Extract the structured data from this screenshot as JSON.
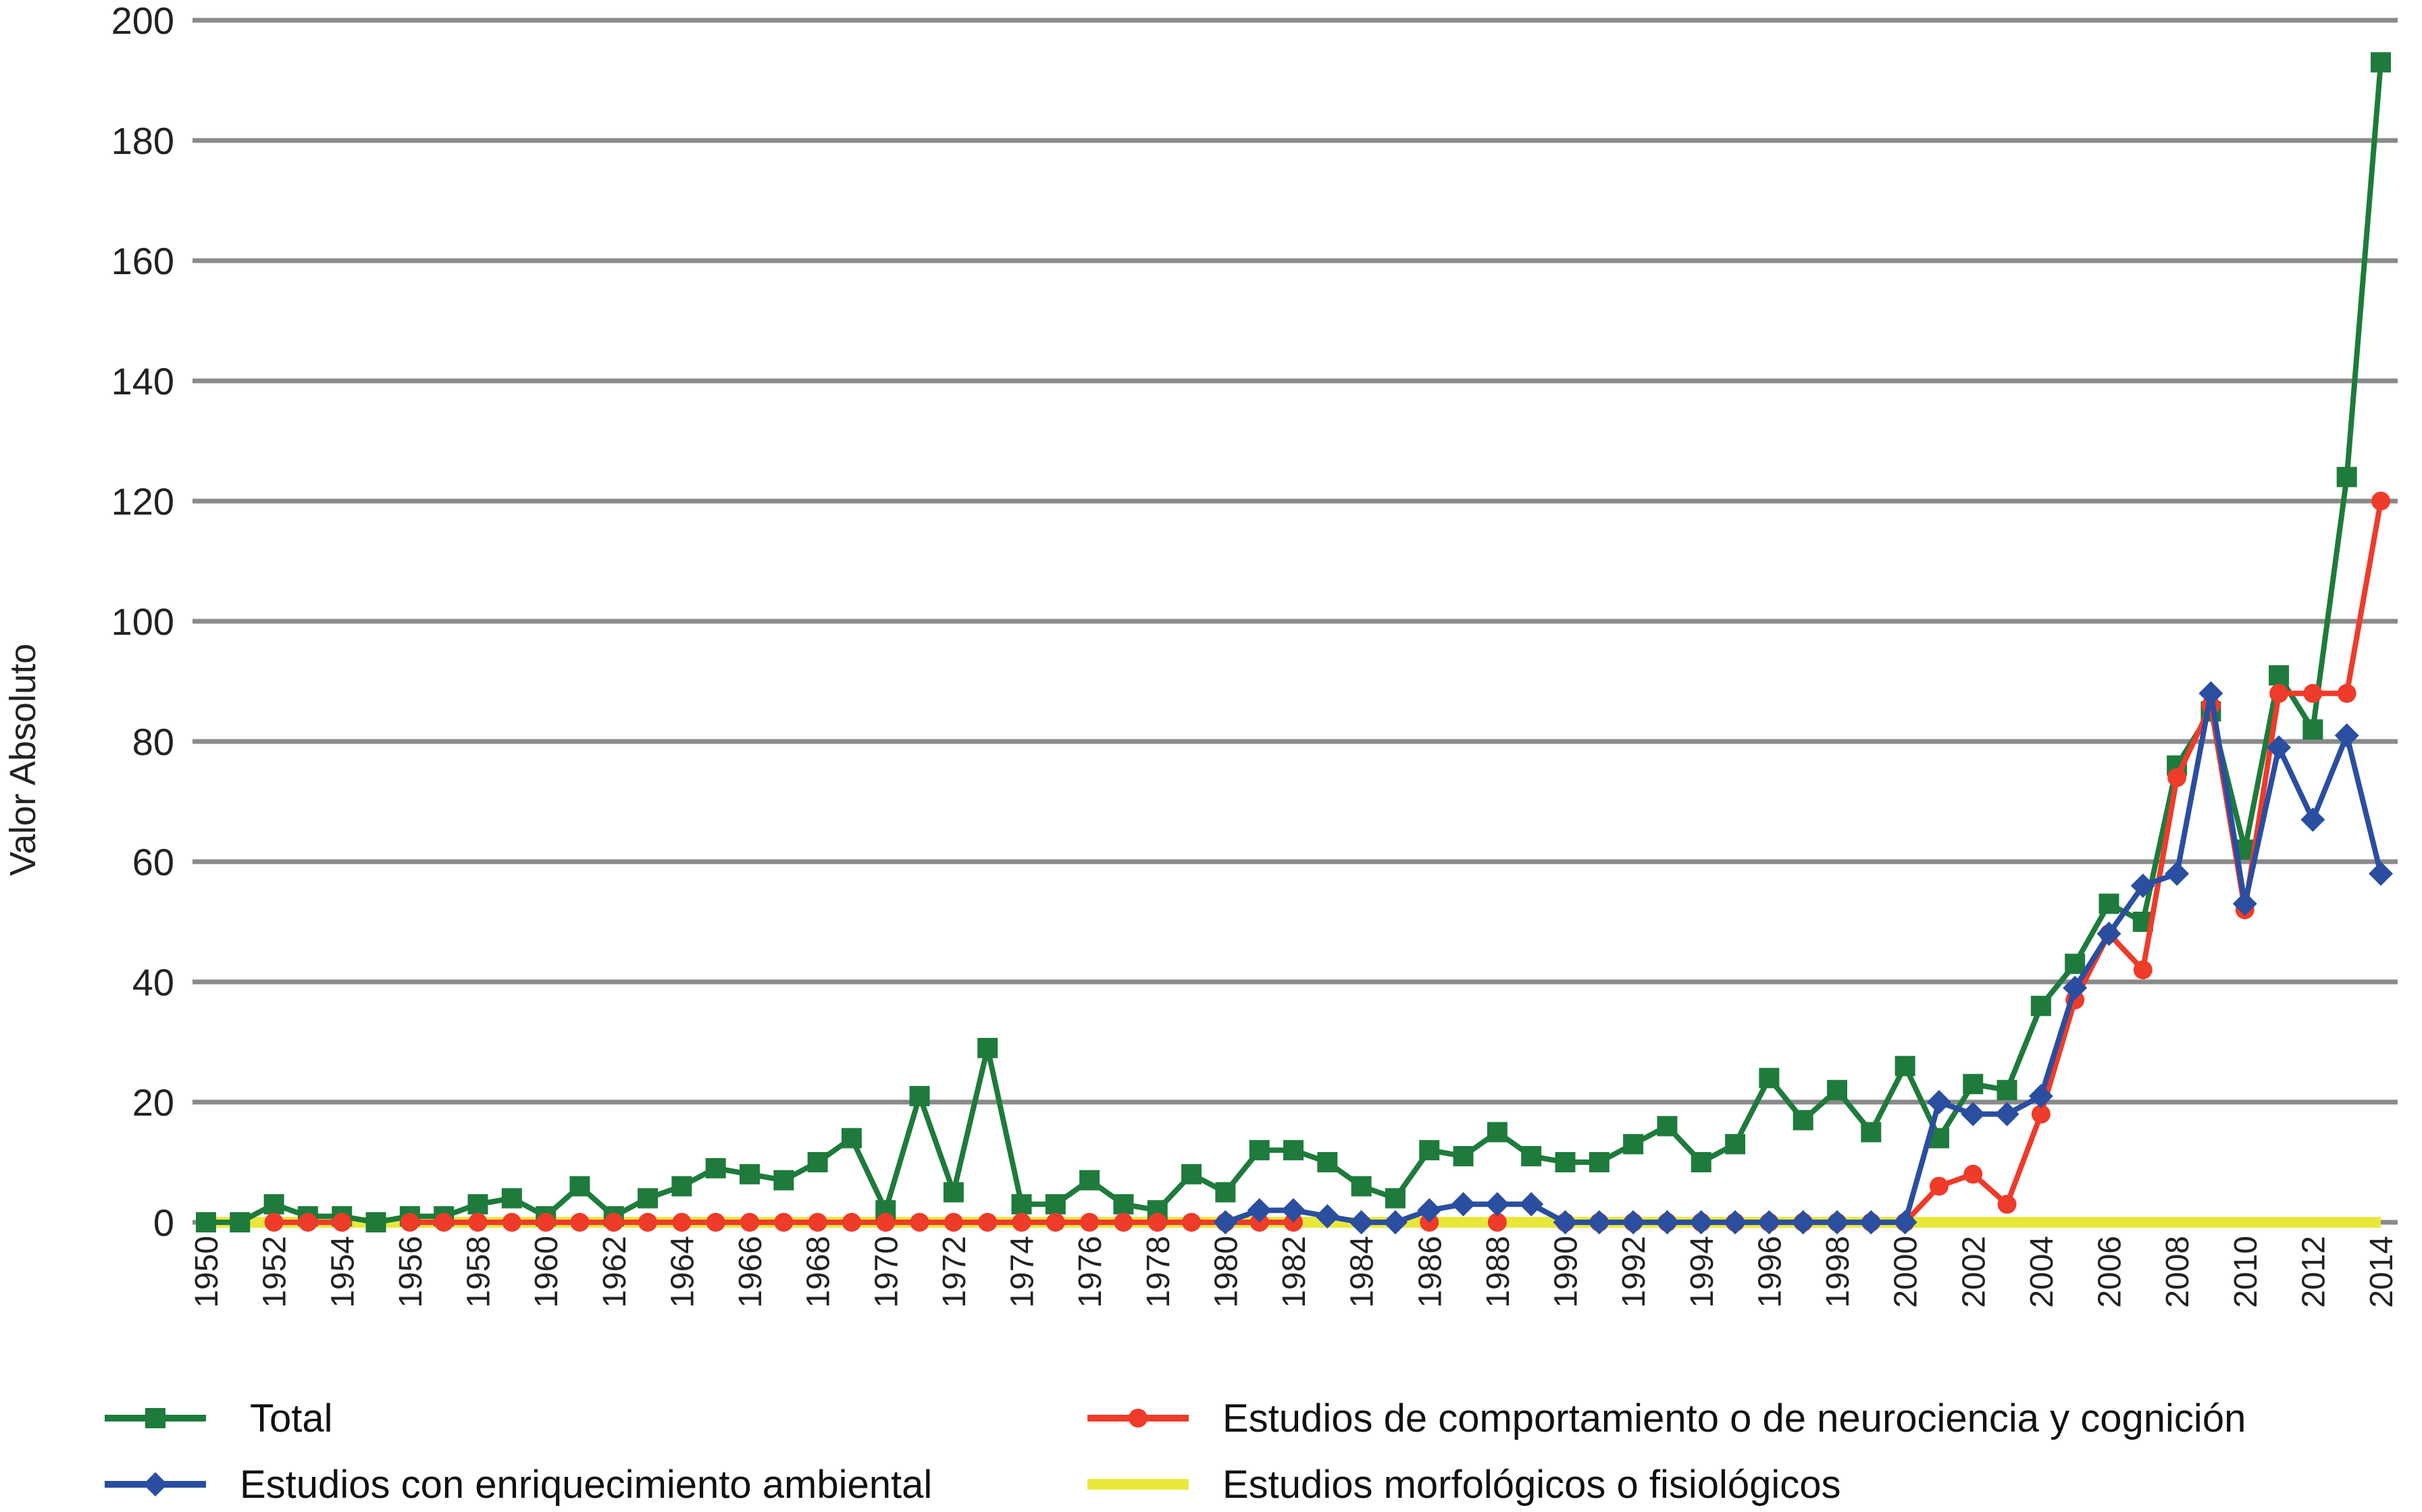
{
  "chart_data": {
    "type": "line",
    "title": "",
    "xlabel": "",
    "ylabel": "Valor Absoluto",
    "ylim": [
      0,
      200
    ],
    "yticks": [
      0,
      20,
      40,
      60,
      80,
      100,
      120,
      140,
      160,
      180,
      200
    ],
    "grid": "horizontal",
    "legend_position": "bottom",
    "x_start": 1950,
    "x_end": 2014,
    "xtick_labels": [
      "1950",
      "1952",
      "1954",
      "1956",
      "1958",
      "1960",
      "1962",
      "1964",
      "1966",
      "1968",
      "1970",
      "1972",
      "1974",
      "1976",
      "1978",
      "1980",
      "1982",
      "1984",
      "1986",
      "1988",
      "1990",
      "1992",
      "1994",
      "1996",
      "1998",
      "2000",
      "2002",
      "2004",
      "2006",
      "2008",
      "2010",
      "2012",
      "2014"
    ],
    "series": [
      {
        "name": "Estudios morfológicos o fisiológicos",
        "color": "#e8e83a",
        "marker": "none",
        "values": [
          0,
          0,
          0,
          0,
          0,
          0,
          0,
          0,
          0,
          0,
          0,
          0,
          0,
          0,
          0,
          0,
          0,
          0,
          0,
          0,
          0,
          0,
          0,
          0,
          0,
          0,
          0,
          0,
          0,
          0,
          0,
          0,
          0,
          0,
          0,
          0,
          0,
          0,
          0,
          0,
          0,
          0,
          0,
          0,
          0,
          0,
          0,
          0,
          0,
          0,
          0,
          0,
          0,
          0,
          0,
          0,
          0,
          0,
          0,
          0,
          0,
          0,
          0,
          0,
          0
        ]
      },
      {
        "name": "Total",
        "color": "#1e7b3c",
        "marker": "square",
        "values": [
          0,
          0,
          3,
          1,
          1,
          0,
          1,
          1,
          3,
          4,
          1,
          6,
          1,
          4,
          6,
          9,
          8,
          7,
          10,
          14,
          2,
          21,
          5,
          29,
          3,
          3,
          7,
          3,
          2,
          8,
          5,
          12,
          12,
          10,
          6,
          4,
          12,
          11,
          15,
          11,
          10,
          10,
          13,
          16,
          10,
          13,
          24,
          17,
          22,
          15,
          26,
          14,
          23,
          22,
          36,
          43,
          53,
          50,
          76,
          85,
          62,
          91,
          82,
          124,
          193
        ]
      },
      {
        "name": "Estudios de comportamiento o de neurociencia y cognición",
        "color": "#ee3b2a",
        "marker": "circle",
        "values": [
          null,
          null,
          0,
          0,
          0,
          null,
          0,
          0,
          0,
          0,
          0,
          0,
          0,
          0,
          0,
          0,
          0,
          0,
          0,
          0,
          0,
          0,
          0,
          0,
          0,
          0,
          0,
          0,
          0,
          0,
          0,
          0,
          0,
          null,
          null,
          null,
          0,
          null,
          0,
          null,
          0,
          0,
          0,
          0,
          0,
          0,
          0,
          0,
          0,
          0,
          0,
          6,
          8,
          3,
          18,
          37,
          48,
          42,
          74,
          86,
          52,
          88,
          88,
          88,
          120
        ]
      },
      {
        "name": "Estudios con enriquecimiento ambiental",
        "color": "#2a4ea0",
        "marker": "diamond",
        "values": [
          null,
          null,
          null,
          null,
          null,
          null,
          null,
          null,
          null,
          null,
          null,
          null,
          null,
          null,
          null,
          null,
          null,
          null,
          null,
          null,
          null,
          null,
          null,
          null,
          null,
          null,
          null,
          null,
          null,
          null,
          0,
          2,
          2,
          1,
          0,
          0,
          2,
          3,
          3,
          3,
          0,
          0,
          0,
          0,
          0,
          0,
          0,
          0,
          0,
          0,
          0,
          20,
          18,
          18,
          21,
          39,
          48,
          56,
          58,
          88,
          53,
          79,
          67,
          81,
          58
        ]
      }
    ],
    "legend": [
      {
        "label": "Total",
        "color": "#1e7b3c",
        "marker": "square"
      },
      {
        "label": "Estudios de comportamiento o de neurociencia y cognición",
        "color": "#ee3b2a",
        "marker": "circle"
      },
      {
        "label": "Estudios con enriquecimiento ambiental",
        "color": "#2a4ea0",
        "marker": "diamond"
      },
      {
        "label": "Estudios morfológicos o fisiológicos",
        "color": "#e8e83a",
        "marker": "none"
      }
    ]
  }
}
